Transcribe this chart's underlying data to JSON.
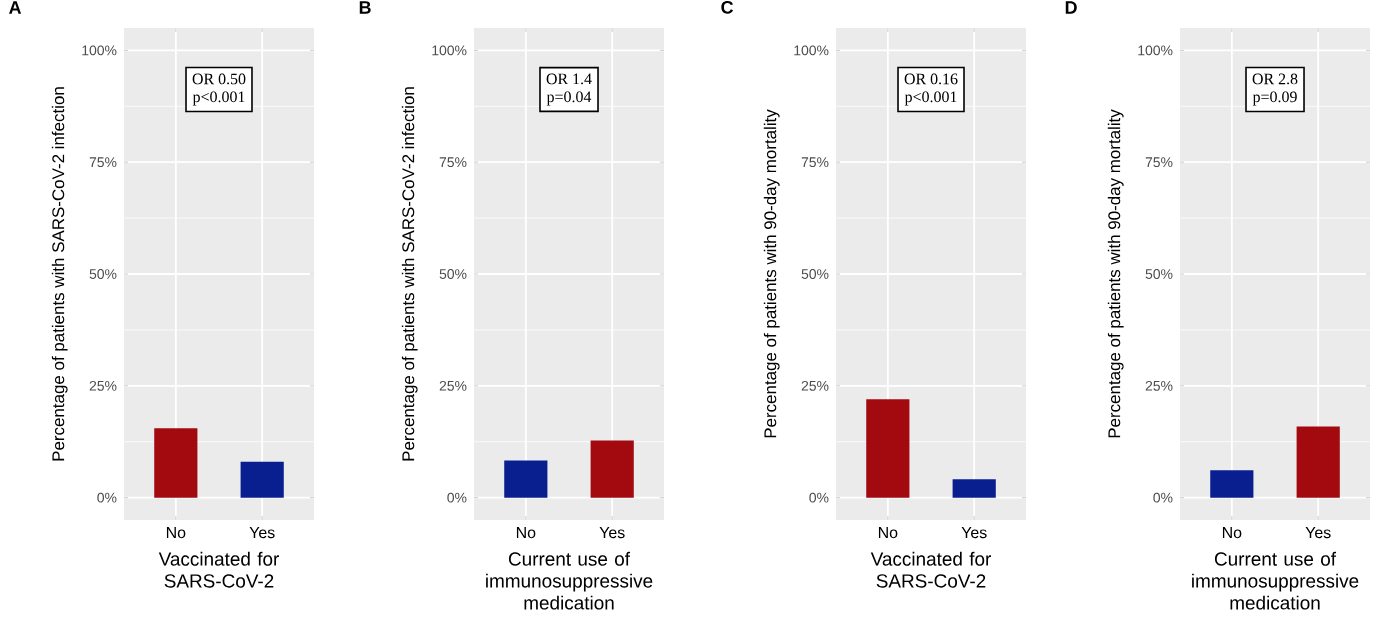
{
  "chart_data": [
    {
      "type": "bar",
      "title": "A",
      "xlabel": "Vaccinated for SARS-CoV-2",
      "ylabel": "Percentage of patients with SARS-CoV-2 infection",
      "categories": [
        "No",
        "Yes"
      ],
      "values": [
        15.5,
        8
      ],
      "colors": [
        "#a20a10",
        "#0a1f8f"
      ],
      "ylim": [
        -5,
        105
      ],
      "yticks": [
        {
          "value": 0,
          "label": "0%"
        },
        {
          "value": 25,
          "label": "25%"
        },
        {
          "value": 50,
          "label": "50%"
        },
        {
          "value": 75,
          "label": "75%"
        },
        {
          "value": 100,
          "label": "100%"
        }
      ],
      "grid": true,
      "annotations": [
        "OR 0.50",
        "p<0.001"
      ]
    },
    {
      "type": "bar",
      "title": "B",
      "xlabel": "Current use of immunosuppressive medication",
      "ylabel": "Percentage of patients with SARS-CoV-2 infection",
      "categories": [
        "No",
        "Yes"
      ],
      "values": [
        8.3,
        12.8
      ],
      "colors": [
        "#0a1f8f",
        "#a20a10"
      ],
      "ylim": [
        -5,
        105
      ],
      "yticks": [
        {
          "value": 0,
          "label": "0%"
        },
        {
          "value": 25,
          "label": "25%"
        },
        {
          "value": 50,
          "label": "50%"
        },
        {
          "value": 75,
          "label": "75%"
        },
        {
          "value": 100,
          "label": "100%"
        }
      ],
      "grid": true,
      "annotations": [
        "OR 1.4",
        "p=0.04"
      ]
    },
    {
      "type": "bar",
      "title": "C",
      "xlabel": "Vaccinated for SARS-CoV-2",
      "ylabel": "Percentage of patients with 90-day mortality",
      "categories": [
        "No",
        "Yes"
      ],
      "values": [
        22,
        4.1
      ],
      "colors": [
        "#a20a10",
        "#0a1f8f"
      ],
      "ylim": [
        -5,
        105
      ],
      "yticks": [
        {
          "value": 0,
          "label": "0%"
        },
        {
          "value": 25,
          "label": "25%"
        },
        {
          "value": 50,
          "label": "50%"
        },
        {
          "value": 75,
          "label": "75%"
        },
        {
          "value": 100,
          "label": "100%"
        }
      ],
      "grid": true,
      "annotations": [
        "OR 0.16",
        "p<0.001"
      ]
    },
    {
      "type": "bar",
      "title": "D",
      "xlabel": "Current use of immunosuppressive medication",
      "ylabel": "Percentage of patients with 90-day mortality",
      "categories": [
        "No",
        "Yes"
      ],
      "values": [
        6.1,
        15.9
      ],
      "colors": [
        "#0a1f8f",
        "#a20a10"
      ],
      "ylim": [
        -5,
        105
      ],
      "yticks": [
        {
          "value": 0,
          "label": "0%"
        },
        {
          "value": 25,
          "label": "25%"
        },
        {
          "value": 50,
          "label": "50%"
        },
        {
          "value": 75,
          "label": "75%"
        },
        {
          "value": 100,
          "label": "100%"
        }
      ],
      "grid": true,
      "annotations": [
        "OR 2.8",
        "p=0.09"
      ]
    }
  ]
}
